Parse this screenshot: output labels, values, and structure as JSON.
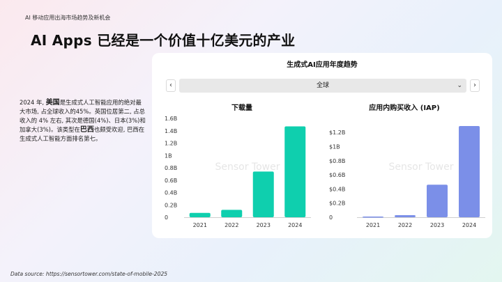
{
  "header_tag": "AI 移动应用出海市场趋势及新机会",
  "title": "AI Apps 已经是一个价值十亿美元的产业",
  "description": {
    "part1": "2024 年,",
    "highlight1": "美国",
    "part2": "是生成式人工智能应用的绝对最大市场, 占全球收入的45%。英国位居第二, 占总收入的 4% 左右, 其次是德国(4%)、日本(3%)和加拿大(3%)。该类型在",
    "highlight2": "巴西",
    "part3": "也颇受欢迎, 巴西在生成式人工智能方面排名第七。"
  },
  "card": {
    "title": "生成式AI应用年度趋势",
    "left_arrow": "‹",
    "right_arrow": "›",
    "region_select": "全球",
    "chevron": "⌄"
  },
  "watermark": "Sensor Tower",
  "footer": "Data source:  https://sensortower.com/state-of-mobile-2025",
  "chart_data": [
    {
      "type": "bar",
      "title": "下载量",
      "categories": [
        "2021",
        "2022",
        "2023",
        "2024"
      ],
      "values": [
        0.07,
        0.12,
        0.74,
        1.47
      ],
      "ylim": [
        0,
        1.6
      ],
      "ticks": [
        0,
        0.2,
        0.4,
        0.6,
        0.8,
        1.0,
        1.2,
        1.4,
        1.6
      ],
      "tick_labels": [
        "0",
        "0.2B",
        "0.4B",
        "0.6B",
        "0.8B",
        "1B",
        "1.2B",
        "1.4B",
        "1.6B"
      ],
      "color": "#0fcfae",
      "grid": false
    },
    {
      "type": "bar",
      "title": "应用内购买收入 (IAP)",
      "categories": [
        "2021",
        "2022",
        "2023",
        "2024"
      ],
      "values": [
        0.01,
        0.03,
        0.46,
        1.29
      ],
      "ylim": [
        0,
        1.3
      ],
      "ticks": [
        0,
        0.2,
        0.4,
        0.6,
        0.8,
        1.0,
        1.2
      ],
      "tick_labels": [
        "0",
        "$0.2B",
        "$0.4B",
        "$0.6B",
        "$0.8B",
        "$1B",
        "$1.2B"
      ],
      "color": "#7b8fe8",
      "grid": false
    }
  ]
}
